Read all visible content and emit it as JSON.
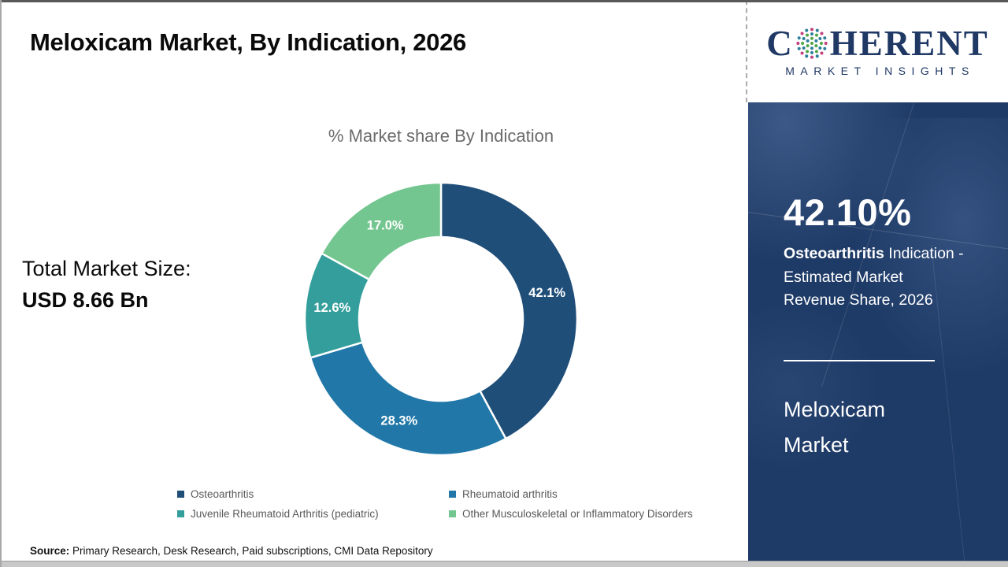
{
  "header": {
    "title": "Meloxicam Market, By Indication, 2026"
  },
  "logo": {
    "c": "C",
    "rest": "HERENT",
    "subtitle": "MARKET INSIGHTS",
    "colors": {
      "navy": "#1F3864",
      "teal": "#2E7F9B",
      "green": "#52A546",
      "magenta": "#C2417E"
    }
  },
  "left_panel": {
    "label": "Total Market Size:",
    "value": "USD 8.66 Bn"
  },
  "chart_data": {
    "type": "pie",
    "donut": true,
    "title": "% Market share By Indication",
    "start_angle_deg": 0,
    "direction": "clockwise",
    "categories": [
      "Osteoarthritis",
      "Rheumatoid arthritis",
      "Juvenile Rheumatoid Arthritis (pediatric)",
      "Other Musculoskeletal or Inflammatory Disorders"
    ],
    "values": [
      42.1,
      28.3,
      12.6,
      17.0
    ],
    "labels": [
      "42.1%",
      "28.3%",
      "12.6%",
      "17.0%"
    ],
    "colors": [
      "#1F4E79",
      "#2178A8",
      "#339E9B",
      "#74C690"
    ],
    "legend_position": "bottom"
  },
  "sidebar": {
    "background": "#1E3A66",
    "stat_value": "42.10%",
    "stat_bold": "Osteoarthritis",
    "stat_line1_rest": " Indication -",
    "stat_line2": "Estimated Market",
    "stat_line3": "Revenue Share, 2026",
    "report_title_line1": "Meloxicam",
    "report_title_line2": "Market"
  },
  "footer": {
    "source_label": "Source:",
    "source_text": " Primary Research, Desk Research, Paid subscriptions, CMI Data Repository"
  }
}
